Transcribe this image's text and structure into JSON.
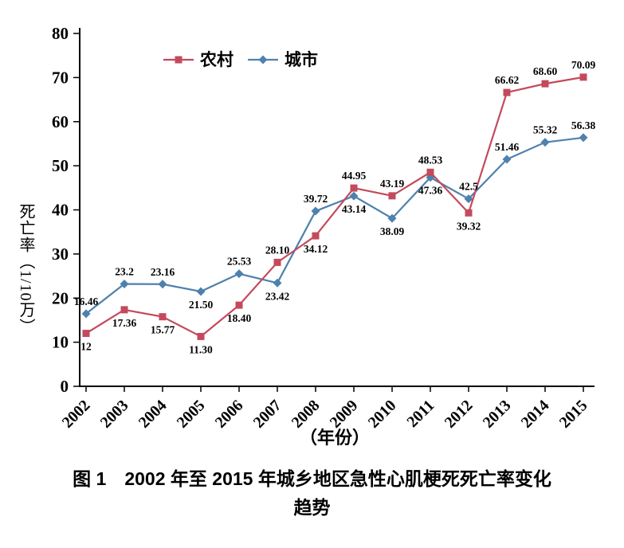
{
  "figure": {
    "caption_line1": "图 1　2002 年至 2015 年城乡地区急性心肌梗死死亡率变化",
    "caption_line2": "趋势"
  },
  "chart_data": {
    "type": "line",
    "title": "",
    "xlabel": "（年份）",
    "ylabel": "死亡率（1/10万）",
    "x": [
      "2002",
      "2003",
      "2004",
      "2005",
      "2006",
      "2007",
      "2008",
      "2009",
      "2010",
      "2011",
      "2012",
      "2013",
      "2014",
      "2015"
    ],
    "ylim": [
      0,
      80
    ],
    "ytick_step": 10,
    "grid": false,
    "legend_position": "top-center",
    "series": [
      {
        "name": "农村",
        "color": "#c34a5c",
        "marker": "square",
        "values": [
          12,
          17.36,
          15.77,
          11.3,
          18.4,
          28.1,
          34.12,
          44.95,
          43.19,
          48.53,
          39.32,
          66.62,
          68.6,
          70.09
        ],
        "labels": [
          "12",
          "17.36",
          "15.77",
          "11.30",
          "18.40",
          "28.10",
          "34.12",
          "44.95",
          "43.19",
          "48.53",
          "39.32",
          "66.62",
          "68.60",
          "70.09"
        ],
        "label_side": [
          "below",
          "below",
          "below",
          "below",
          "below",
          "above",
          "below",
          "above",
          "above",
          "above",
          "below",
          "above",
          "above",
          "above"
        ]
      },
      {
        "name": "城市",
        "color": "#4e81ad",
        "marker": "diamond",
        "values": [
          16.46,
          23.2,
          23.16,
          21.5,
          25.53,
          23.42,
          39.72,
          43.14,
          38.09,
          47.36,
          42.5,
          51.46,
          55.32,
          56.38
        ],
        "labels": [
          "16.46",
          "23.2",
          "23.16",
          "21.50",
          "25.53",
          "23.42",
          "39.72",
          "43.14",
          "38.09",
          "47.36",
          "42.5",
          "51.46",
          "55.32",
          "56.38"
        ],
        "label_side": [
          "above",
          "above",
          "above",
          "below",
          "above",
          "below",
          "above",
          "below",
          "below",
          "below",
          "above",
          "above",
          "above",
          "above"
        ]
      }
    ]
  }
}
